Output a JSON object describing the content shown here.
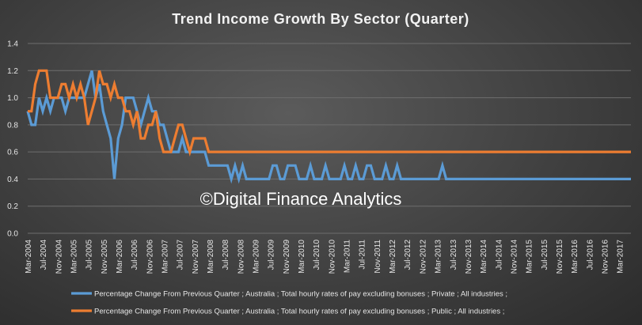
{
  "chart_data": {
    "type": "line",
    "title": "Trend Income Growth By Sector (Quarter)",
    "watermark": "©Digital Finance Analytics",
    "xlabel": "",
    "ylabel": "",
    "ylim": [
      0,
      1.4
    ],
    "yticks": [
      "0.0",
      "0.2",
      "0.4",
      "0.6",
      "0.8",
      "1.0",
      "1.2",
      "1.4"
    ],
    "grid": true,
    "legend_position": "bottom",
    "x_tick_labels": [
      "Mar-2004",
      "Jul-2004",
      "Nov-2004",
      "Mar-2005",
      "Jul-2005",
      "Nov-2005",
      "Mar-2006",
      "Jul-2006",
      "Nov-2006",
      "Mar-2007",
      "Jul-2007",
      "Nov-2007",
      "Mar-2008",
      "Jul-2008",
      "Nov-2008",
      "Mar-2009",
      "Jul-2009",
      "Nov-2009",
      "Mar-2010",
      "Jul-2010",
      "Nov-2010",
      "Mar-2011",
      "Jul-2011",
      "Nov-2011",
      "Mar-2012",
      "Jul-2012",
      "Nov-2012",
      "Mar-2013",
      "Jul-2013",
      "Nov-2013",
      "Mar-2014",
      "Jul-2014",
      "Nov-2014",
      "Mar-2015",
      "Jul-2015",
      "Nov-2015",
      "Mar-2016",
      "Jul-2016",
      "Nov-2016",
      "Mar-2017"
    ],
    "x_start": "Mar-2004",
    "x_end": "Jun-2017",
    "series": [
      {
        "name": "Percentage Change From Previous Quarter ;  Australia ;  Total hourly rates of pay excluding bonuses ;  Private ;  All industries ;",
        "color": "#5b9bd5",
        "values": [
          0.9,
          0.8,
          0.8,
          1.0,
          0.9,
          1.0,
          0.9,
          1.0,
          1.0,
          1.0,
          0.9,
          1.0,
          1.0,
          1.0,
          1.0,
          1.0,
          1.1,
          1.2,
          1.0,
          1.1,
          0.9,
          0.8,
          0.7,
          0.4,
          0.7,
          0.8,
          1.0,
          1.0,
          1.0,
          0.9,
          0.8,
          0.9,
          1.0,
          0.9,
          0.9,
          0.8,
          0.8,
          0.7,
          0.6,
          0.6,
          0.6,
          0.7,
          0.6,
          0.6,
          0.6,
          0.6,
          0.6,
          0.6,
          0.5,
          0.5,
          0.5,
          0.5,
          0.5,
          0.5,
          0.4,
          0.5,
          0.4,
          0.5,
          0.4,
          0.4,
          0.4,
          0.4,
          0.4,
          0.4,
          0.4,
          0.5,
          0.5,
          0.4,
          0.4,
          0.5,
          0.5,
          0.5,
          0.4,
          0.4,
          0.4,
          0.5,
          0.4,
          0.4,
          0.4,
          0.5,
          0.4,
          0.4,
          0.4,
          0.4,
          0.5,
          0.4,
          0.4,
          0.5,
          0.4,
          0.4,
          0.5,
          0.5,
          0.4,
          0.4,
          0.4,
          0.5,
          0.4,
          0.4,
          0.5,
          0.4,
          0.4,
          0.4,
          0.4,
          0.4,
          0.4,
          0.4,
          0.4,
          0.4,
          0.4,
          0.4,
          0.5,
          0.4,
          0.4,
          0.4,
          0.4,
          0.4,
          0.4,
          0.4,
          0.4,
          0.4,
          0.4,
          0.4,
          0.4,
          0.4,
          0.4,
          0.4,
          0.4,
          0.4,
          0.4,
          0.4,
          0.4,
          0.4,
          0.4,
          0.4,
          0.4,
          0.4,
          0.4,
          0.4,
          0.4,
          0.4,
          0.4,
          0.4,
          0.4,
          0.4,
          0.4,
          0.4,
          0.4,
          0.4,
          0.4,
          0.4,
          0.4,
          0.4,
          0.4,
          0.4,
          0.4,
          0.4,
          0.4,
          0.4,
          0.4,
          0.4,
          0.4
        ]
      },
      {
        "name": "Percentage Change From Previous Quarter ;  Australia ;  Total hourly rates of pay excluding bonuses ;  Public ;  All industries ;",
        "color": "#ed7d31",
        "values": [
          0.9,
          0.9,
          1.1,
          1.2,
          1.2,
          1.2,
          1.0,
          1.0,
          1.0,
          1.1,
          1.1,
          1.0,
          1.1,
          1.0,
          1.1,
          1.0,
          0.8,
          0.9,
          1.0,
          1.2,
          1.1,
          1.1,
          1.0,
          1.1,
          1.0,
          1.0,
          0.9,
          0.9,
          0.8,
          0.9,
          0.7,
          0.7,
          0.8,
          0.8,
          0.9,
          0.7,
          0.6,
          0.6,
          0.6,
          0.7,
          0.8,
          0.8,
          0.7,
          0.6,
          0.7,
          0.7,
          0.7,
          0.7,
          0.6,
          0.6,
          0.6,
          0.6,
          0.6,
          0.6,
          0.6,
          0.6,
          0.6,
          0.6,
          0.6,
          0.6,
          0.6,
          0.6,
          0.6,
          0.6,
          0.6,
          0.6,
          0.6,
          0.6,
          0.6,
          0.6,
          0.6,
          0.6,
          0.6,
          0.6,
          0.6,
          0.6,
          0.6,
          0.6,
          0.6,
          0.6,
          0.6,
          0.6,
          0.6,
          0.6,
          0.6,
          0.6,
          0.6,
          0.6,
          0.6,
          0.6,
          0.6,
          0.6,
          0.6,
          0.6,
          0.6,
          0.6,
          0.6,
          0.6,
          0.6,
          0.6,
          0.6,
          0.6,
          0.6,
          0.6,
          0.6,
          0.6,
          0.6,
          0.6,
          0.6,
          0.6,
          0.6,
          0.6,
          0.6,
          0.6,
          0.6,
          0.6,
          0.6,
          0.6,
          0.6,
          0.6,
          0.6,
          0.6,
          0.6,
          0.6,
          0.6,
          0.6,
          0.6,
          0.6,
          0.6,
          0.6,
          0.6,
          0.6,
          0.6,
          0.6,
          0.6,
          0.6,
          0.6,
          0.6,
          0.6,
          0.6,
          0.6,
          0.6,
          0.6,
          0.6,
          0.6,
          0.6,
          0.6,
          0.6,
          0.6,
          0.6,
          0.6,
          0.6,
          0.6,
          0.6,
          0.6,
          0.6,
          0.6,
          0.6,
          0.6,
          0.6,
          0.6
        ]
      }
    ]
  }
}
